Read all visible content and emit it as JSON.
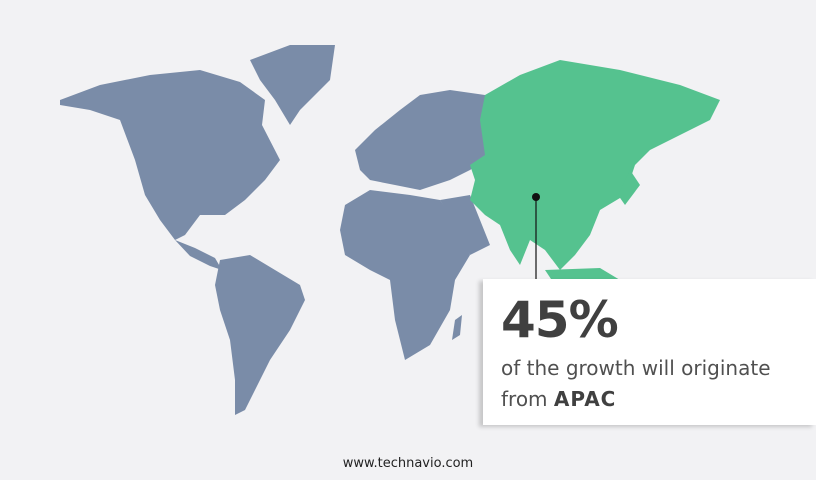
{
  "colors": {
    "background": "#f2f2f4",
    "other_regions": "#7a8ca8",
    "highlight_region": "#55c28f",
    "marker": "#111111"
  },
  "highlight": {
    "region": "APAC",
    "value": "45%",
    "text": "of the growth will originate",
    "from_label": "from",
    "region_label": "APAC"
  },
  "footer": {
    "url": "www.technavio.com"
  }
}
